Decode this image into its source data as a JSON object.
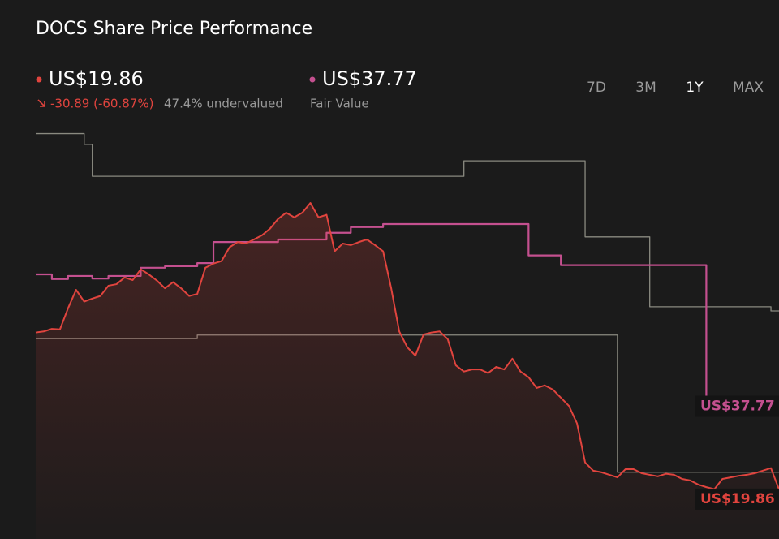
{
  "header": {
    "title": "DOCS Share Price Performance",
    "price": "US$19.86",
    "change": "-30.89 (-60.87%)",
    "valuation": "47.4% undervalued",
    "fair_value": "US$37.77",
    "fair_value_label": "Fair Value",
    "ranges": [
      "7D",
      "3M",
      "1Y",
      "MAX"
    ],
    "selected_range": "1Y"
  },
  "chart_data": {
    "type": "line",
    "ylim": [
      14,
      91.4
    ],
    "grid": false,
    "series": [
      {
        "color": "#8a8a80",
        "step": true,
        "values": [
          89.1,
          89.1,
          89.1,
          89.1,
          89.1,
          89.1,
          87.0,
          80.8,
          80.8,
          80.8,
          80.8,
          80.8,
          80.8,
          80.8,
          80.8,
          80.8,
          80.8,
          80.8,
          80.8,
          80.8,
          80.8,
          80.8,
          80.8,
          80.8,
          80.8,
          80.8,
          80.8,
          80.8,
          80.8,
          80.8,
          80.8,
          80.8,
          80.8,
          80.8,
          80.8,
          80.8,
          80.8,
          80.8,
          80.8,
          80.8,
          80.8,
          80.8,
          80.8,
          80.8,
          80.8,
          80.8,
          80.8,
          80.8,
          80.8,
          80.8,
          80.8,
          80.8,
          80.8,
          83.8,
          83.8,
          83.8,
          83.8,
          83.8,
          83.8,
          83.8,
          83.8,
          83.8,
          83.8,
          83.8,
          83.8,
          83.8,
          83.8,
          83.8,
          69.0,
          69.0,
          69.0,
          69.0,
          69.0,
          69.0,
          69.0,
          69.0,
          55.4,
          55.4,
          55.4,
          55.4,
          55.4,
          55.4,
          55.4,
          55.4,
          55.4,
          55.4,
          55.4,
          55.4,
          55.4,
          55.4,
          55.4,
          54.6,
          54.6
        ]
      },
      {
        "color": "#8a8a80",
        "step": true,
        "values": [
          49.2,
          49.2,
          49.2,
          49.2,
          49.2,
          49.2,
          49.2,
          49.2,
          49.2,
          49.2,
          49.2,
          49.2,
          49.2,
          49.2,
          49.2,
          49.2,
          49.2,
          49.2,
          49.2,
          49.2,
          49.9,
          49.9,
          49.9,
          49.9,
          49.9,
          49.9,
          49.9,
          49.9,
          49.9,
          49.9,
          49.9,
          49.9,
          49.9,
          49.9,
          49.9,
          49.9,
          49.9,
          49.9,
          49.9,
          49.9,
          49.9,
          49.9,
          49.9,
          49.9,
          49.9,
          49.9,
          49.9,
          49.9,
          49.9,
          49.9,
          49.9,
          49.9,
          49.9,
          49.9,
          49.9,
          49.9,
          49.9,
          49.9,
          49.9,
          49.9,
          49.9,
          49.9,
          49.9,
          49.9,
          49.9,
          49.9,
          49.9,
          49.9,
          49.9,
          49.9,
          49.9,
          49.9,
          23.2,
          23.2,
          23.2,
          23.2,
          23.2,
          23.2,
          23.2,
          23.2,
          23.2,
          23.2,
          23.2,
          23.2,
          23.2,
          23.2,
          23.2,
          23.2,
          23.2,
          23.2,
          23.2,
          23.2,
          23.2
        ]
      },
      {
        "color": "#c4508f",
        "step": true,
        "values": [
          61.7,
          61.7,
          60.8,
          60.8,
          61.4,
          61.4,
          61.4,
          60.9,
          60.9,
          61.4,
          61.4,
          61.4,
          61.4,
          63.0,
          63.0,
          63.0,
          63.3,
          63.3,
          63.3,
          63.3,
          63.9,
          63.9,
          68.0,
          68.0,
          68.0,
          68.0,
          68.0,
          68.0,
          68.0,
          68.0,
          68.5,
          68.5,
          68.5,
          68.5,
          68.5,
          68.5,
          69.8,
          69.8,
          69.8,
          70.9,
          70.9,
          70.9,
          70.9,
          71.5,
          71.5,
          71.5,
          71.5,
          71.5,
          71.5,
          71.5,
          71.5,
          71.5,
          71.5,
          71.5,
          71.5,
          71.5,
          71.5,
          71.5,
          71.5,
          71.5,
          71.5,
          65.4,
          65.4,
          65.4,
          65.4,
          63.5,
          63.5,
          63.5,
          63.5,
          63.5,
          63.5,
          63.5,
          63.5,
          63.5,
          63.5,
          63.5,
          63.5,
          63.5,
          63.5,
          63.5,
          63.5,
          63.5,
          63.5,
          37.77,
          37.77,
          37.77,
          37.77,
          37.77,
          37.77,
          37.77,
          37.77,
          37.77,
          37.77
        ]
      },
      {
        "color": "#e0443e",
        "area": true,
        "values": [
          50.4,
          50.6,
          51.1,
          51.0,
          55.1,
          58.7,
          56.4,
          57.0,
          57.5,
          59.5,
          59.8,
          61.1,
          60.6,
          62.7,
          61.7,
          60.5,
          59.0,
          60.2,
          59.0,
          57.5,
          57.9,
          63.0,
          63.8,
          64.3,
          67.0,
          68.0,
          67.7,
          68.5,
          69.3,
          70.6,
          72.5,
          73.7,
          72.8,
          73.7,
          75.6,
          72.8,
          73.3,
          66.2,
          67.7,
          67.4,
          68.0,
          68.5,
          67.4,
          66.2,
          59.0,
          50.6,
          47.5,
          45.9,
          50.0,
          50.4,
          50.6,
          49.1,
          44.0,
          42.8,
          43.2,
          43.2,
          42.5,
          43.7,
          43.2,
          45.3,
          42.8,
          41.7,
          39.6,
          40.1,
          39.3,
          37.7,
          36.1,
          32.7,
          25.1,
          23.5,
          23.2,
          22.7,
          22.2,
          23.8,
          23.8,
          23.0,
          22.7,
          22.4,
          22.9,
          22.7,
          21.9,
          21.6,
          20.8,
          20.3,
          19.9,
          21.9,
          22.2,
          22.5,
          22.7,
          23.0,
          23.5,
          24.0,
          19.86
        ]
      }
    ]
  }
}
